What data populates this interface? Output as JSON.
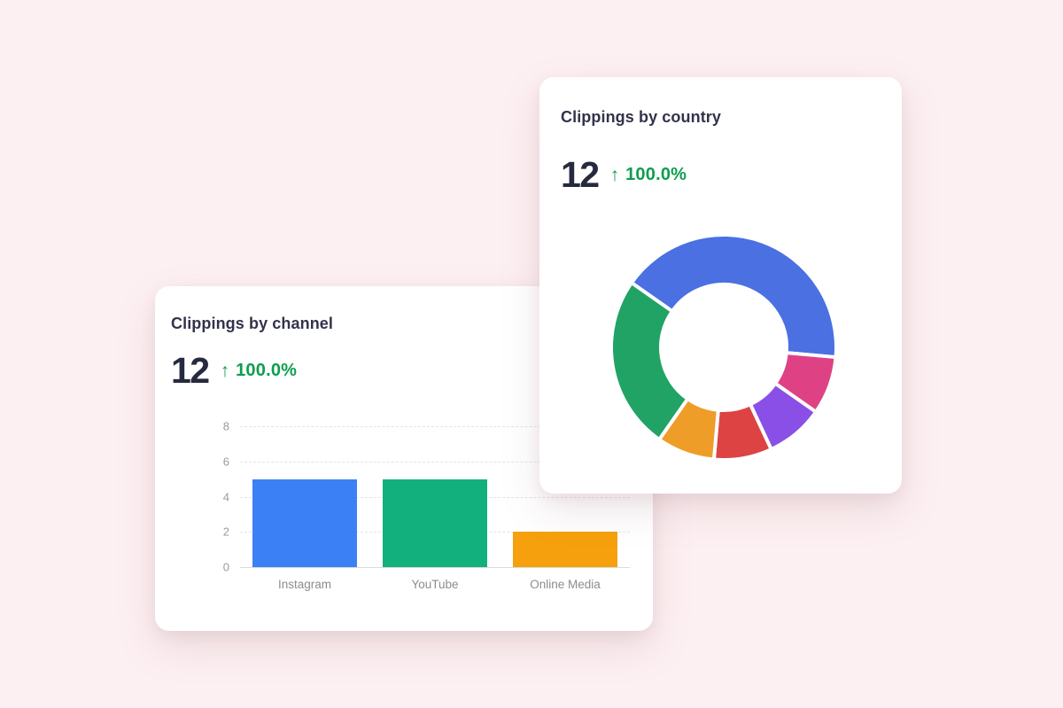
{
  "palette": {
    "page_background": "#fdf0f2",
    "card_background": "#ffffff",
    "heading_text": "#32334a",
    "metric_text": "#262a3f",
    "positive_green": "#0f9d4e",
    "muted_label": "#8c8c8c",
    "gridline": "#e4e4e4",
    "axis_line": "#dbdbdb"
  },
  "cards": {
    "channel": {
      "title": "Clippings by channel",
      "metric_value": "12",
      "trend_arrow": "↑",
      "trend_value": "100.0%"
    },
    "country": {
      "title": "Clippings by country",
      "metric_value": "12",
      "trend_arrow": "↑",
      "trend_value": "100.0%"
    }
  },
  "chart_data": [
    {
      "type": "bar",
      "title": "Clippings by channel",
      "categories": [
        "Instagram",
        "YouTube",
        "Online Media"
      ],
      "values": [
        5,
        5,
        2
      ],
      "colors": [
        "#3b81f5",
        "#12b07c",
        "#f6a00d"
      ],
      "xlabel": "",
      "ylabel": "",
      "ylim": [
        0,
        8
      ],
      "yticks": [
        0,
        2,
        4,
        6,
        8
      ],
      "grid": "horizontal-dashed",
      "legend": "none",
      "total": 12
    },
    {
      "type": "pie",
      "title": "Clippings by country",
      "values": [
        5,
        1,
        1,
        1,
        1,
        3
      ],
      "colors": [
        "#4a70e2",
        "#de4284",
        "#8a4fe6",
        "#dd4343",
        "#ee9d28",
        "#21a366"
      ],
      "start_angle_deg": -55,
      "inner_radius_ratio": 0.55,
      "gap_stroke_px": 4,
      "legend": "none",
      "total": 12
    }
  ]
}
